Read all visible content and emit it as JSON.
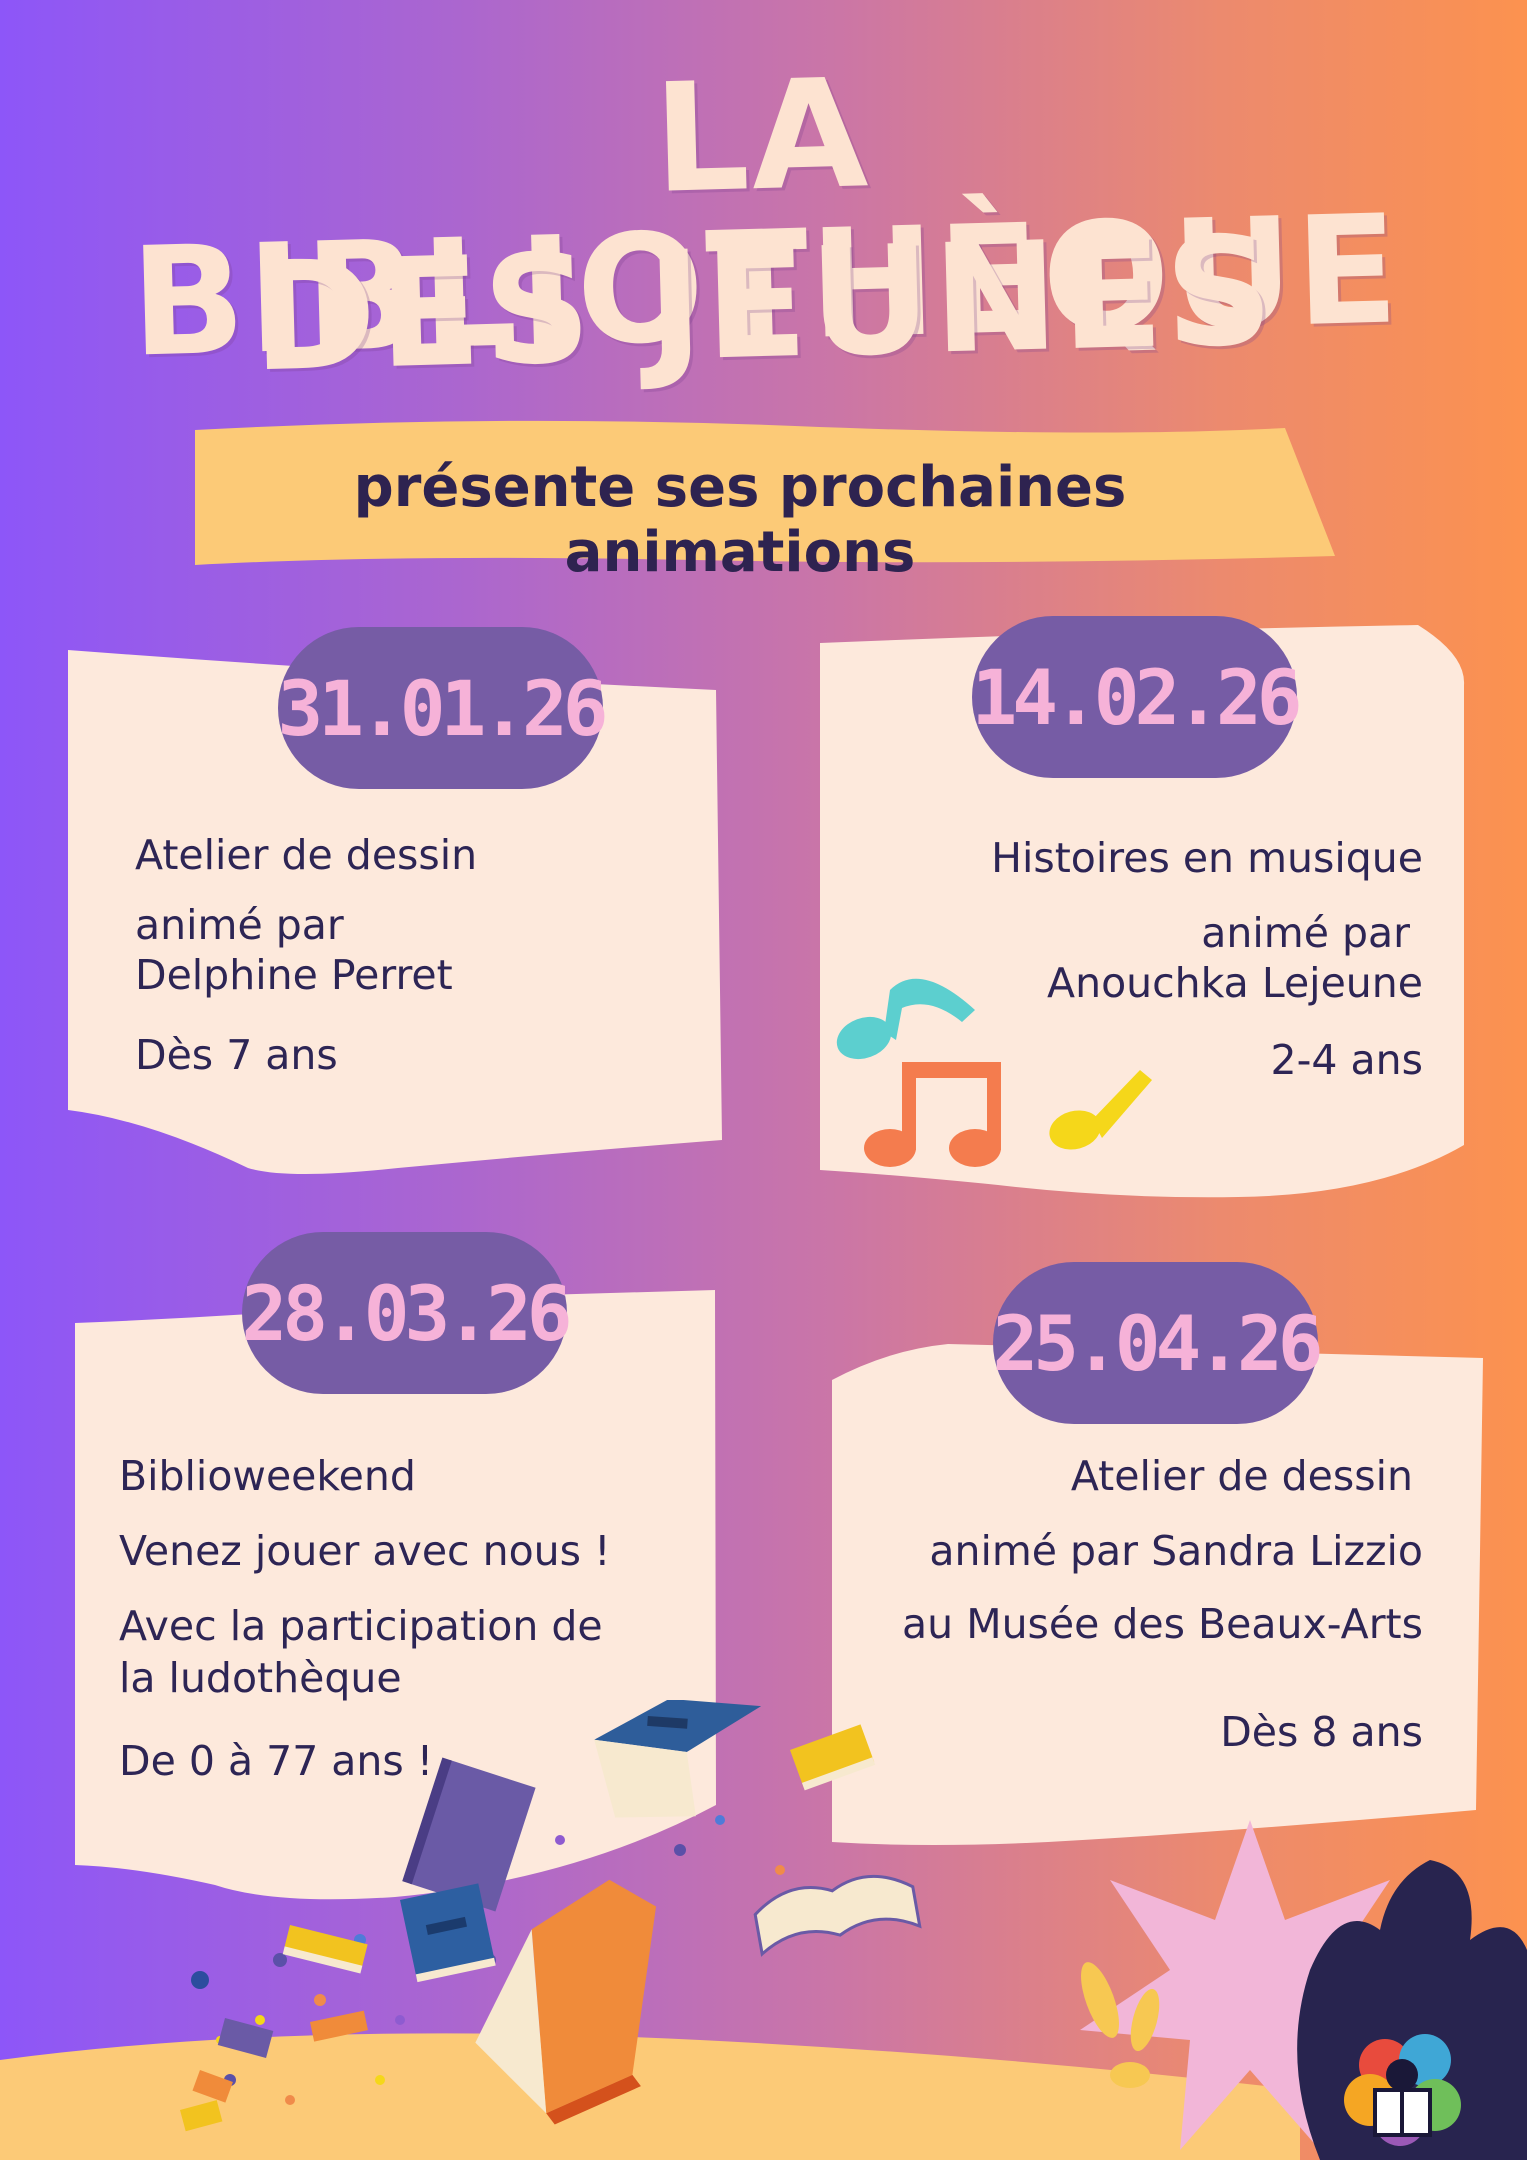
{
  "poster": {
    "title_line1": "LA BIBLIOTHÈQUE",
    "title_line2": "DES JEUNES",
    "subtitle": "présente ses prochaines animations"
  },
  "events": [
    {
      "date": "31.01.26",
      "lines": [
        "Atelier de dessin",
        "animé par",
        "Delphine Perret",
        "Dès 7 ans"
      ]
    },
    {
      "date": "14.02.26",
      "lines": [
        "Histoires en musique",
        "animé par",
        "Anouchka Lejeune",
        "2-4 ans"
      ]
    },
    {
      "date": "28.03.26",
      "lines": [
        "Biblioweekend",
        "Venez jouer avec nous !",
        "Avec la participation de",
        "la ludothèque",
        "De 0 à 77 ans !"
      ]
    },
    {
      "date": "25.04.26",
      "lines": [
        "Atelier de dessin",
        "animé par Sandra Lizzio",
        "au Musée des Beaux-Arts",
        "Dès 8 ans"
      ]
    }
  ],
  "colors": {
    "card": "#fde9dc",
    "date_pill": "#765ca5",
    "date_text": "#f6b2d8",
    "banner": "#fcca77",
    "text_dark": "#2d2555",
    "title": "#fde3d1"
  },
  "decorations": [
    "music-notes-icon",
    "flying-books-illustration",
    "library-logo-icon",
    "starburst-shape"
  ]
}
